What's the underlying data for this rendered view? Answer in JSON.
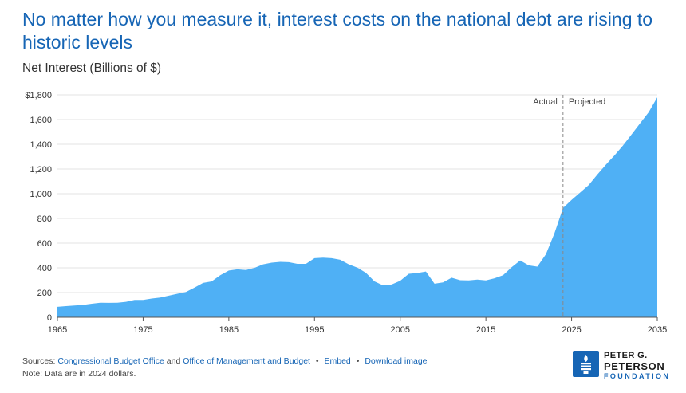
{
  "headline": "No matter how you measure it, interest costs on the national debt are rising to historic levels",
  "footer": {
    "sources_prefix": "Sources:",
    "source1": "Congressional Budget Office",
    "and": "and",
    "source2": "Office of Management and Budget",
    "embed": "Embed",
    "download": "Download image",
    "note": "Note: Data are in 2024 dollars."
  },
  "logo": {
    "line1": "PETER G.",
    "line2": "PETERSON",
    "line3": "FOUNDATION"
  },
  "colors": {
    "area": "#4fb0f5",
    "accent": "#1665b5"
  },
  "chart_data": {
    "type": "area",
    "title": "",
    "ylabel": "Net Interest (Billions of $)",
    "xlabel": "",
    "xlim": [
      1965,
      2035
    ],
    "ylim": [
      0,
      1800
    ],
    "x_ticks": [
      "1965",
      "1975",
      "1985",
      "1995",
      "2005",
      "2015",
      "2025",
      "2035"
    ],
    "y_ticks": [
      "$1,800",
      "1,600",
      "1,400",
      "1,200",
      "1,000",
      "800",
      "600",
      "400",
      "200",
      "0"
    ],
    "grid": true,
    "divider": {
      "x": 2024,
      "left_label": "Actual",
      "right_label": "Projected"
    },
    "series": [
      {
        "x": [
          1965,
          1966,
          1967,
          1968,
          1969,
          1970,
          1971,
          1972,
          1973,
          1974,
          1975,
          1976,
          1977,
          1978,
          1979,
          1980,
          1981,
          1982,
          1983,
          1984,
          1985,
          1986,
          1987,
          1988,
          1989,
          1990,
          1991,
          1992,
          1993,
          1994,
          1995,
          1996,
          1997,
          1998,
          1999,
          2000,
          2001,
          2002,
          2003,
          2004,
          2005,
          2006,
          2007,
          2008,
          2009,
          2010,
          2011,
          2012,
          2013,
          2014,
          2015,
          2016,
          2017,
          2018,
          2019,
          2020,
          2021,
          2022,
          2023,
          2024,
          2025,
          2026,
          2027,
          2028,
          2029,
          2030,
          2031,
          2032,
          2033,
          2034,
          2035
        ],
        "values": [
          85,
          90,
          95,
          100,
          110,
          118,
          117,
          118,
          125,
          140,
          140,
          152,
          160,
          175,
          190,
          205,
          240,
          278,
          290,
          340,
          378,
          388,
          382,
          400,
          428,
          442,
          448,
          446,
          432,
          432,
          478,
          482,
          478,
          465,
          428,
          402,
          360,
          290,
          258,
          265,
          295,
          352,
          358,
          370,
          272,
          282,
          320,
          300,
          298,
          305,
          298,
          315,
          340,
          405,
          460,
          420,
          410,
          510,
          680,
          885,
          950,
          1010,
          1070,
          1155,
          1235,
          1310,
          1390,
          1480,
          1570,
          1660,
          1780
        ]
      }
    ]
  }
}
